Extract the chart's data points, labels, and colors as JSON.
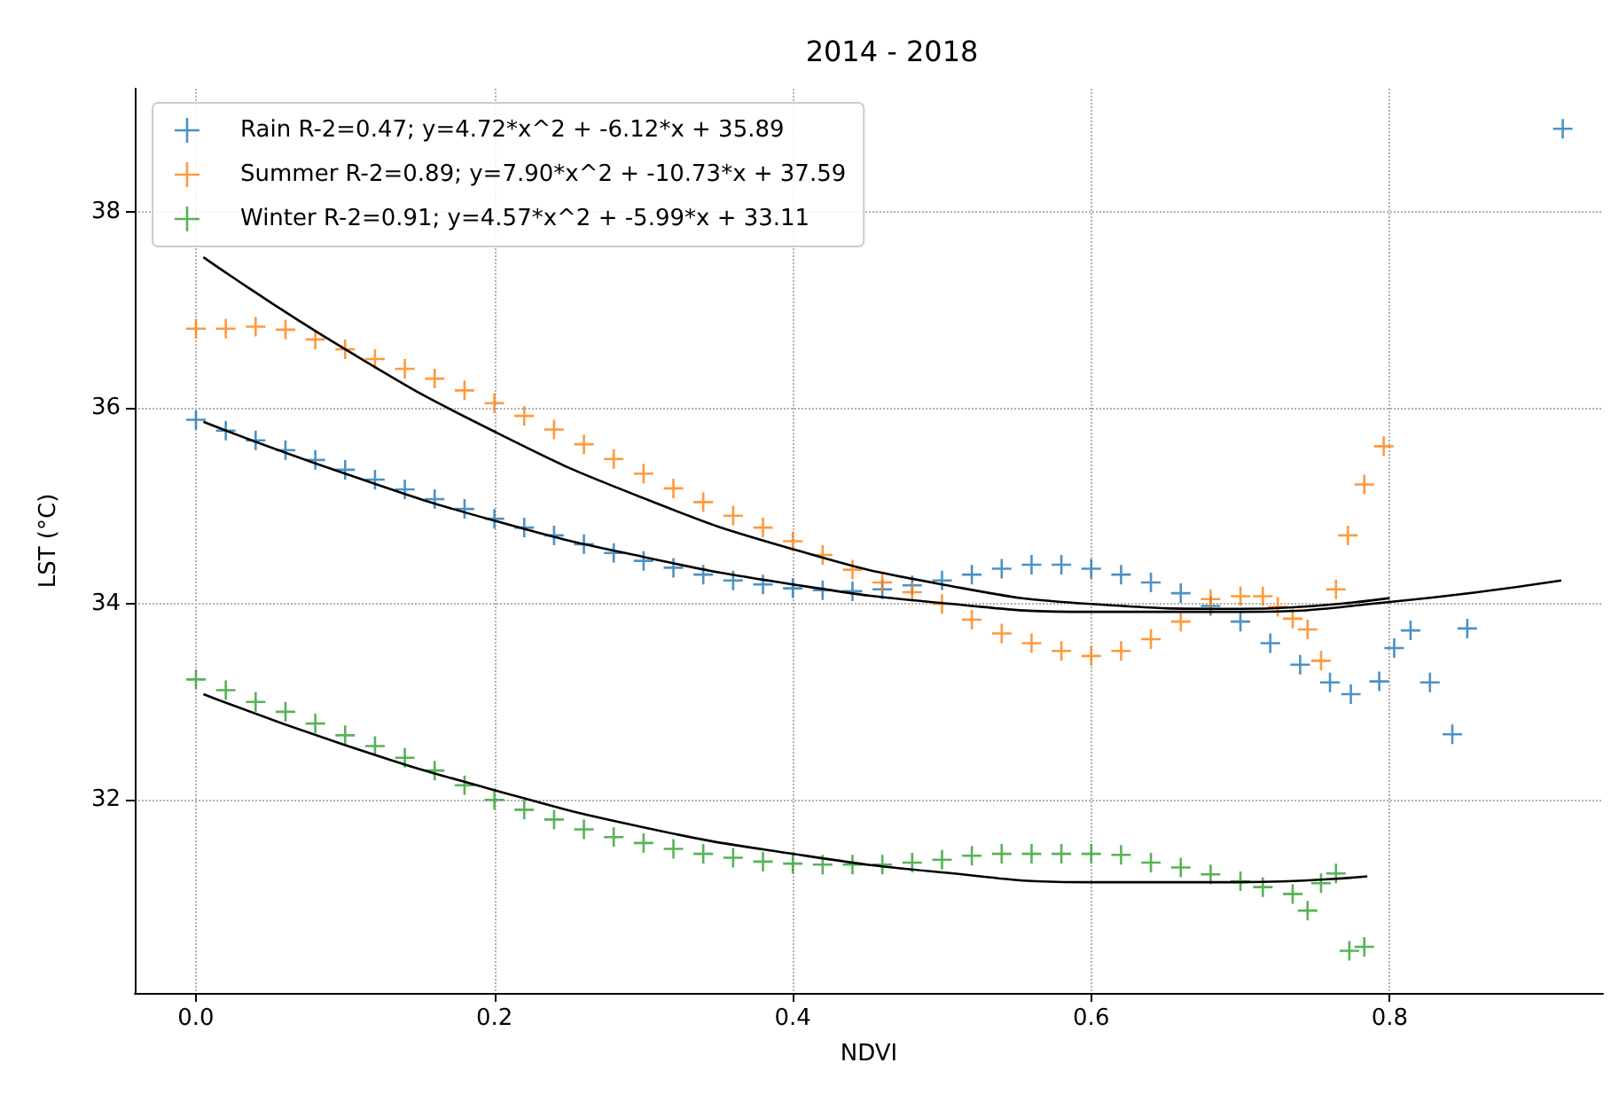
{
  "chart_data": {
    "type": "scatter",
    "title": "2014 - 2018",
    "xlabel": "NDVI",
    "ylabel": "LST (°C)",
    "xlim": [
      -0.041,
      0.943
    ],
    "ylim": [
      30.03,
      39.26
    ],
    "xticks": [
      {
        "value": 0,
        "label": "0.0"
      },
      0.2,
      0.4,
      0.6,
      0.8
    ],
    "yticks": [
      32,
      34,
      36,
      38
    ],
    "grid": true,
    "legend": "top left",
    "marker": "cross",
    "series": [
      {
        "name": "Rain R-2=0.47; y=4.72*x^2 + -6.12*x + 35.89",
        "color": "#1f77b4",
        "x": [
          0,
          0.02,
          0.04,
          0.06,
          0.08,
          0.1,
          0.12,
          0.14,
          0.16,
          0.18,
          0.2,
          0.22,
          0.24,
          0.26,
          0.28,
          0.3,
          0.32,
          0.34,
          0.36,
          0.38,
          0.4,
          0.42,
          0.44,
          0.46,
          0.48,
          0.5,
          0.52,
          0.54,
          0.56,
          0.58,
          0.6,
          0.62,
          0.64,
          0.66,
          0.68,
          0.7,
          0.72,
          0.74,
          0.76,
          0.774,
          0.793,
          0.803,
          0.814,
          0.827,
          0.842,
          0.852,
          0.916
        ],
        "values": [
          35.88,
          35.77,
          35.67,
          35.57,
          35.47,
          35.37,
          35.27,
          35.17,
          35.07,
          34.97,
          34.87,
          34.78,
          34.7,
          34.61,
          34.52,
          34.44,
          34.37,
          34.3,
          34.24,
          34.2,
          34.16,
          34.14,
          34.13,
          34.15,
          34.19,
          34.24,
          34.3,
          34.36,
          34.4,
          34.4,
          34.36,
          34.3,
          34.22,
          34.11,
          33.98,
          33.82,
          33.6,
          33.38,
          33.2,
          33.08,
          33.21,
          33.55,
          33.73,
          33.2,
          32.67,
          33.75,
          38.85
        ]
      },
      {
        "name": "Summer R-2=0.89; y=7.90*x^2 + -10.73*x + 37.59",
        "color": "#ff7f0e",
        "x": [
          0,
          0.02,
          0.04,
          0.06,
          0.08,
          0.1,
          0.12,
          0.14,
          0.16,
          0.18,
          0.2,
          0.22,
          0.24,
          0.26,
          0.28,
          0.3,
          0.32,
          0.34,
          0.36,
          0.38,
          0.4,
          0.42,
          0.44,
          0.46,
          0.48,
          0.5,
          0.52,
          0.54,
          0.56,
          0.58,
          0.6,
          0.62,
          0.64,
          0.66,
          0.68,
          0.7,
          0.715,
          0.725,
          0.735,
          0.745,
          0.754,
          0.764,
          0.772,
          0.783,
          0.796
        ],
        "values": [
          36.81,
          36.81,
          36.83,
          36.8,
          36.7,
          36.6,
          36.5,
          36.4,
          36.3,
          36.18,
          36.05,
          35.92,
          35.78,
          35.63,
          35.48,
          35.33,
          35.18,
          35.04,
          34.9,
          34.78,
          34.64,
          34.5,
          34.35,
          34.22,
          34.12,
          34.0,
          33.84,
          33.7,
          33.6,
          33.52,
          33.47,
          33.52,
          33.64,
          33.82,
          34.05,
          34.08,
          34.08,
          33.97,
          33.85,
          33.74,
          33.42,
          34.15,
          34.7,
          35.22,
          35.61
        ]
      },
      {
        "name": "Winter R-2=0.91; y=4.57*x^2 + -5.99*x + 33.11",
        "color": "#2ca02c",
        "x": [
          0,
          0.02,
          0.04,
          0.06,
          0.08,
          0.1,
          0.12,
          0.14,
          0.16,
          0.18,
          0.2,
          0.22,
          0.24,
          0.26,
          0.28,
          0.3,
          0.32,
          0.34,
          0.36,
          0.38,
          0.4,
          0.42,
          0.44,
          0.46,
          0.48,
          0.5,
          0.52,
          0.54,
          0.56,
          0.58,
          0.6,
          0.62,
          0.64,
          0.66,
          0.68,
          0.7,
          0.715,
          0.735,
          0.745,
          0.754,
          0.764,
          0.773,
          0.783
        ],
        "values": [
          33.23,
          33.12,
          33.0,
          32.9,
          32.78,
          32.66,
          32.55,
          32.43,
          32.3,
          32.15,
          32.0,
          31.9,
          31.8,
          31.7,
          31.62,
          31.56,
          31.5,
          31.45,
          31.41,
          31.37,
          31.35,
          31.34,
          31.34,
          31.34,
          31.36,
          31.39,
          31.43,
          31.45,
          31.45,
          31.45,
          31.45,
          31.44,
          31.36,
          31.31,
          31.24,
          31.17,
          31.11,
          31.04,
          30.87,
          31.15,
          31.25,
          30.46,
          30.5
        ]
      },
      {
        "type": "line",
        "marker": "none",
        "color": "#000000",
        "x": [
          0.005,
          0.1,
          0.2,
          0.3,
          0.4,
          0.5,
          0.6,
          0.7,
          0.8,
          0.915
        ],
        "values": [
          35.86,
          35.33,
          34.85,
          34.48,
          34.2,
          34.01,
          33.92,
          33.92,
          34.02,
          34.24
        ]
      },
      {
        "type": "line",
        "marker": "none",
        "color": "#000000",
        "x": [
          0.005,
          0.1,
          0.2,
          0.3,
          0.4,
          0.5,
          0.6,
          0.7,
          0.8
        ],
        "values": [
          37.54,
          36.6,
          35.76,
          35.08,
          34.56,
          34.2,
          34.0,
          33.95,
          34.06
        ]
      },
      {
        "type": "line",
        "marker": "none",
        "color": "#000000",
        "x": [
          0.005,
          0.1,
          0.2,
          0.3,
          0.4,
          0.5,
          0.6,
          0.7,
          0.785
        ],
        "values": [
          33.08,
          32.56,
          32.1,
          31.72,
          31.45,
          31.26,
          31.16,
          31.16,
          31.22
        ]
      }
    ]
  }
}
